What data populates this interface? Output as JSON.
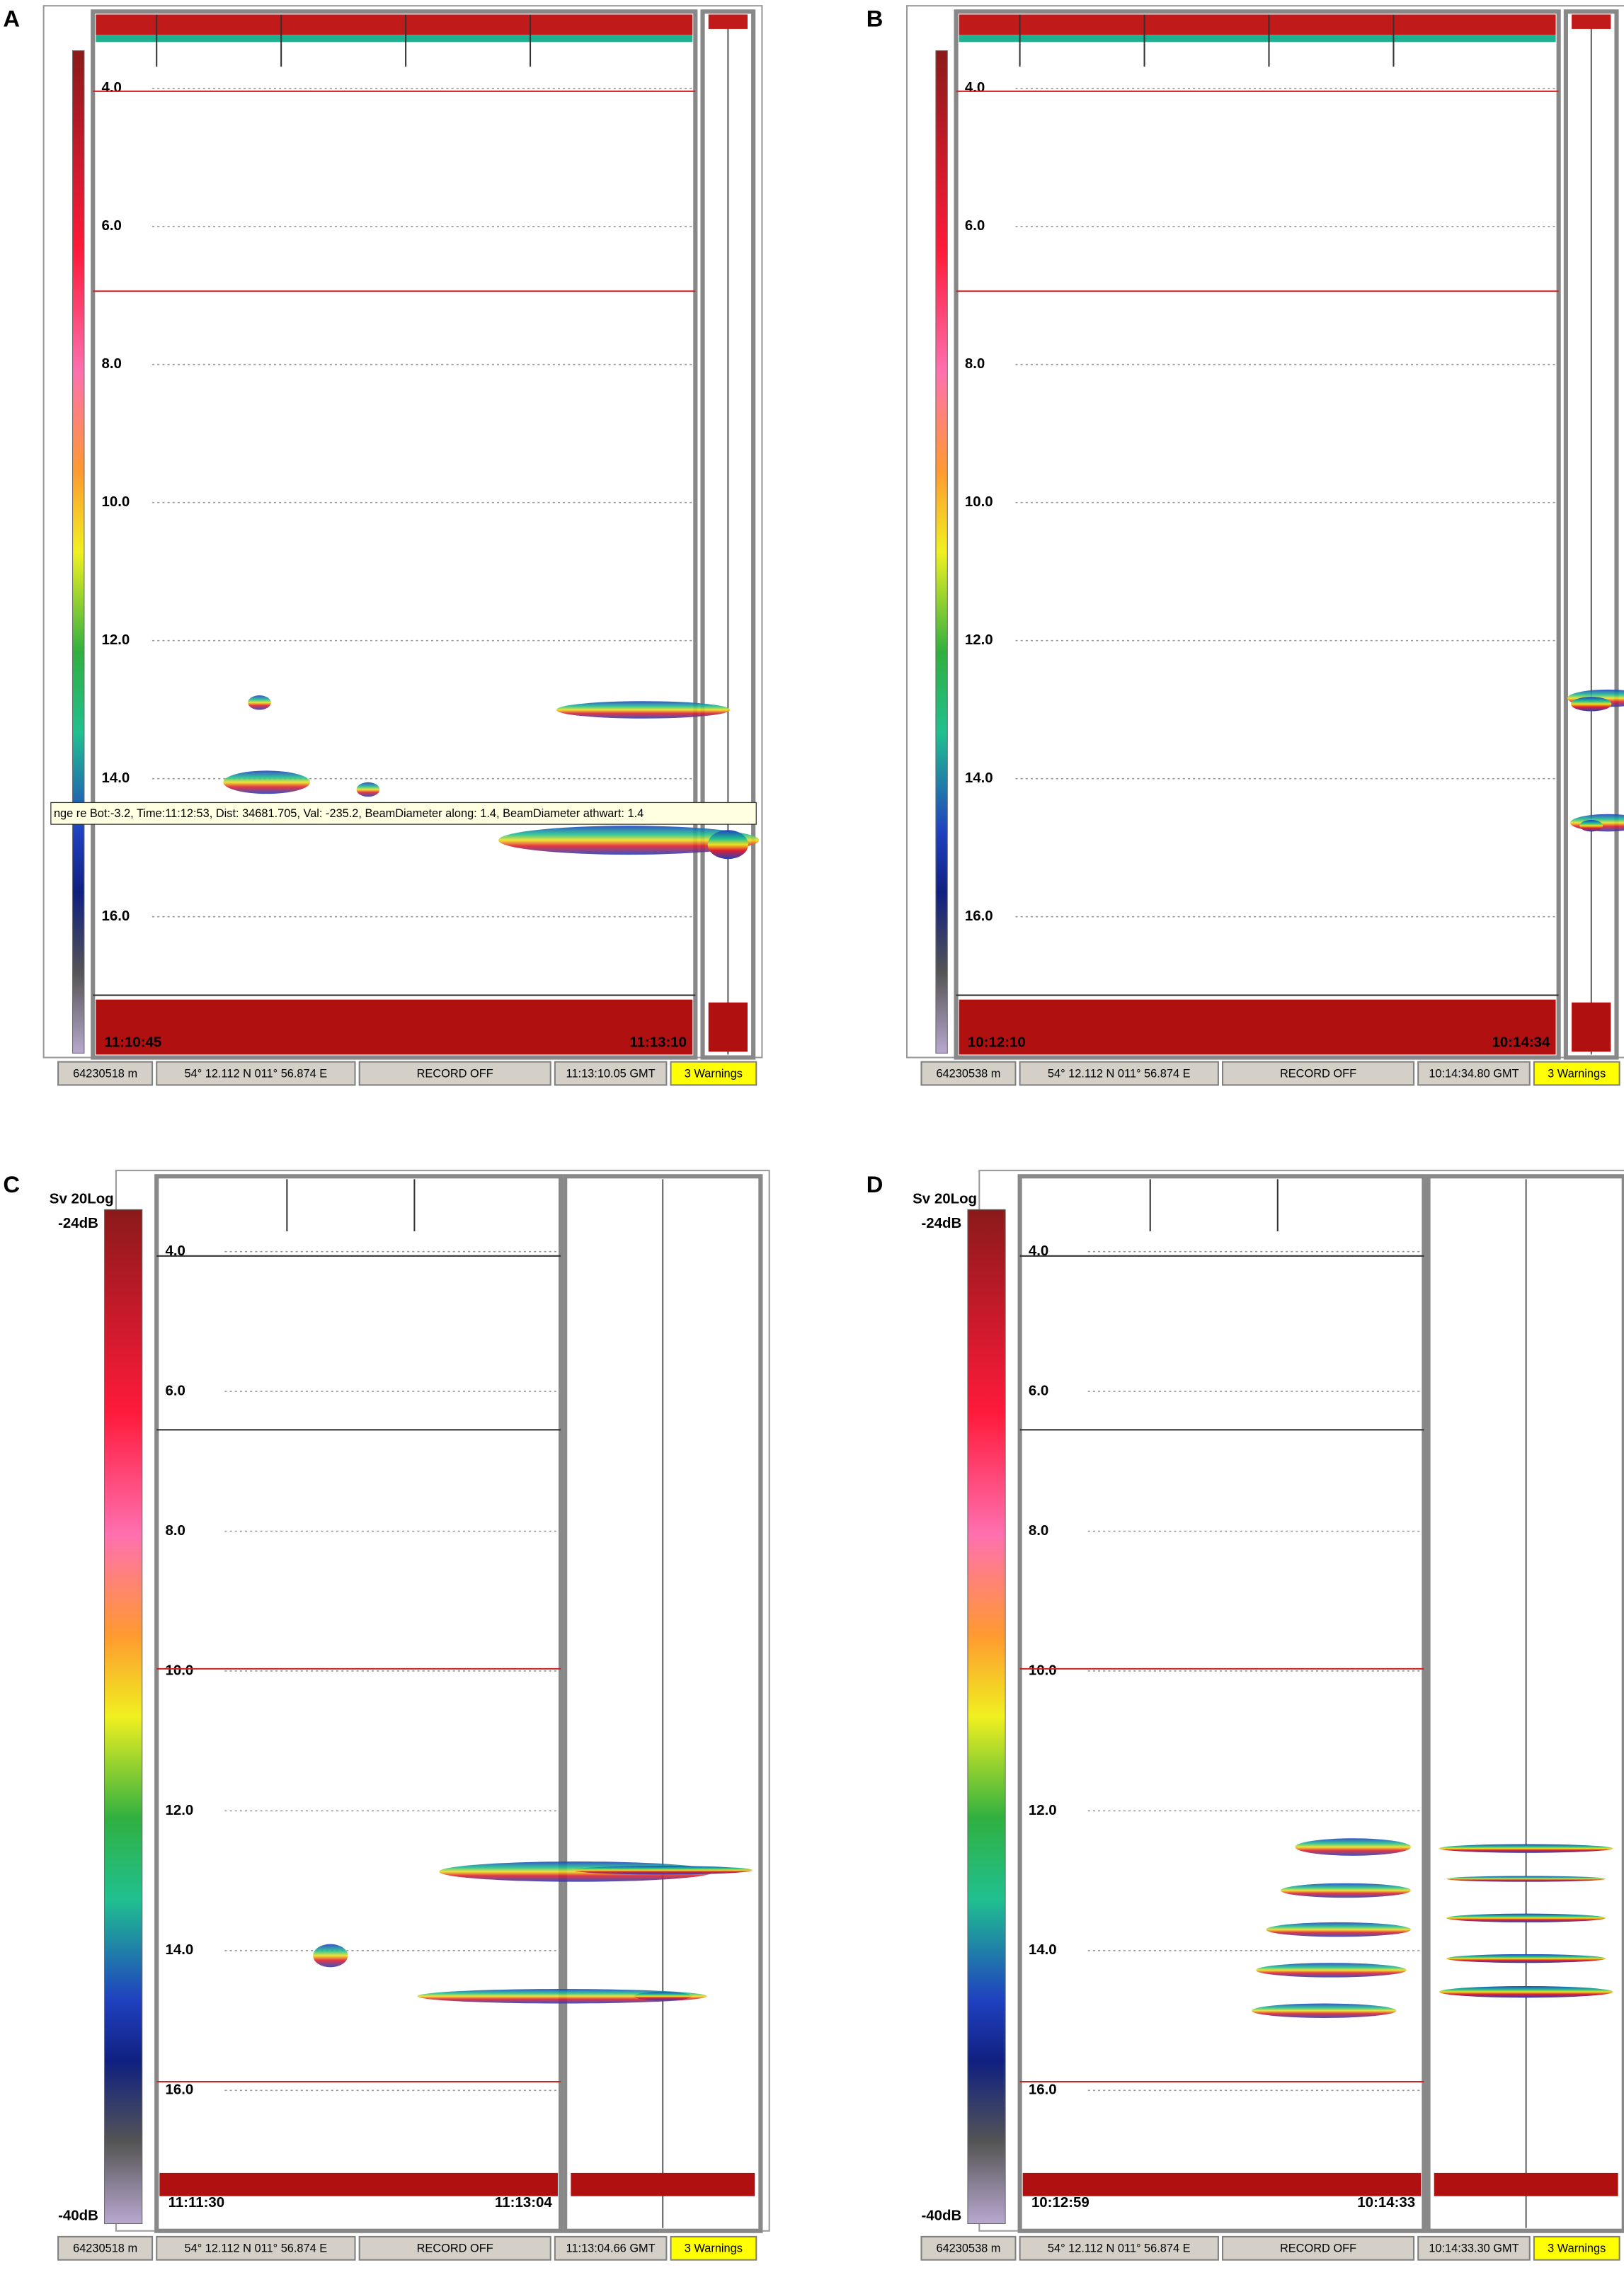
{
  "panels": [
    {
      "label": "A",
      "depth_ticks": [
        "4.0",
        "6.0",
        "8.0",
        "10.0",
        "12.0",
        "14.0",
        "16.0"
      ],
      "start_time": "11:10:45",
      "end_time": "11:13:10",
      "status": [
        "64230518 m",
        "54° 12.112 N  011° 56.874 E",
        "RECORD OFF",
        "11:13:10.05 GMT",
        "3 Warnings"
      ],
      "tooltip": "nge re Bot:-3.2, Time:11:12:53, Dist: 34681.705, Val: -235.2, BeamDiameter along: 1.4, BeamDiameter athwart: 1.4"
    },
    {
      "label": "B",
      "depth_ticks": [
        "4.0",
        "6.0",
        "8.0",
        "10.0",
        "12.0",
        "14.0",
        "16.0"
      ],
      "start_time": "10:12:10",
      "end_time": "10:14:34",
      "status": [
        "64230538 m",
        "54° 12.112 N  011° 56.874 E",
        "RECORD OFF",
        "10:14:34.80 GMT",
        "3 Warnings"
      ]
    },
    {
      "label": "C",
      "colorbar_title": "Sv 20Log",
      "colorbar_max": "-24dB",
      "colorbar_min": "-40dB",
      "depth_ticks": [
        "4.0",
        "6.0",
        "8.0",
        "10.0",
        "12.0",
        "14.0",
        "16.0"
      ],
      "start_time": "11:11:30",
      "end_time": "11:13:04",
      "status": [
        "64230518 m",
        "54° 12.112 N  011° 56.874 E",
        "RECORD OFF",
        "11:13:04.66 GMT",
        "3 Warnings"
      ]
    },
    {
      "label": "D",
      "colorbar_title": "Sv 20Log",
      "colorbar_max": "-24dB",
      "colorbar_min": "-40dB",
      "depth_ticks": [
        "4.0",
        "6.0",
        "8.0",
        "10.0",
        "12.0",
        "14.0",
        "16.0"
      ],
      "start_time": "10:12:59",
      "end_time": "10:14:33",
      "status": [
        "64230538 m",
        "54° 12.112 N  011° 56.874 E",
        "RECORD OFF",
        "10:14:33.30 GMT",
        "3 Warnings"
      ]
    }
  ]
}
